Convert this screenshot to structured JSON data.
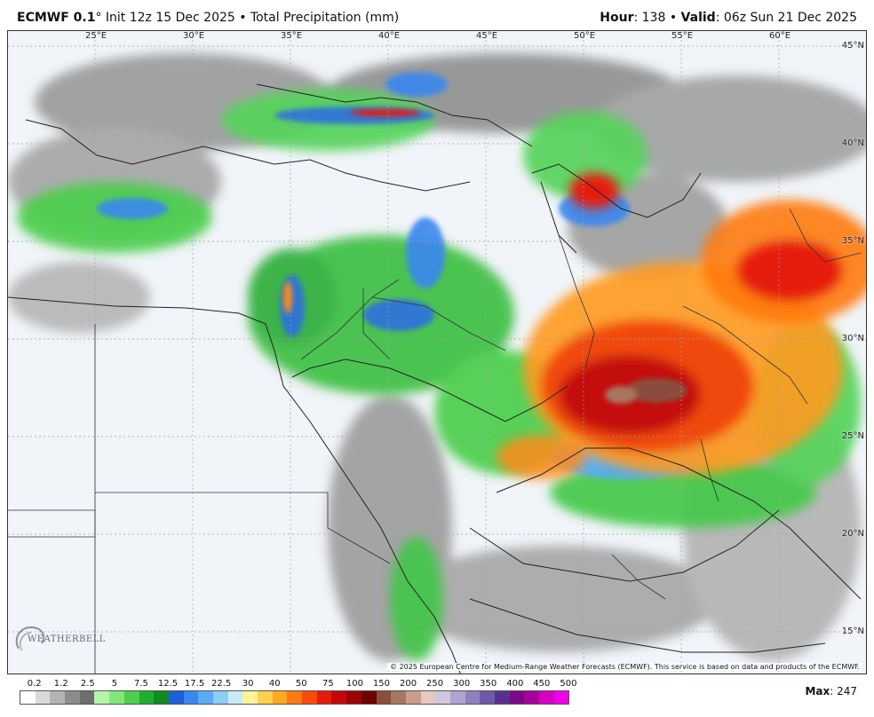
{
  "header": {
    "model": "ECMWF 0.1",
    "degree": "°",
    "init_text": "Init 12z 15 Dec 2025 • Total Precipitation (mm)",
    "hour_label": "Hour",
    "hour_value": ": 138 •",
    "valid_label": "Valid",
    "valid_value": ": 06z Sun 21 Dec 2025"
  },
  "map": {
    "longitudes": [
      "25°E",
      "30°E",
      "35°E",
      "40°E",
      "45°E",
      "50°E",
      "55°E",
      "60°E"
    ],
    "latitudes": [
      "45°N",
      "40°N",
      "35°N",
      "30°N",
      "25°N",
      "20°N",
      "15°N"
    ],
    "credits": "© 2025 European Centre for Medium-Range Weather Forecasts (ECMWF). This service is based on data and products of the ECMWF.",
    "logo_text": "WEATHERBELL"
  },
  "legend": {
    "ticks": [
      "0.2",
      "1.2",
      "2.5",
      "5",
      "7.5",
      "12.5",
      "17.5",
      "22.5",
      "30",
      "40",
      "50",
      "75",
      "100",
      "150",
      "200",
      "250",
      "300",
      "350",
      "400",
      "450",
      "500"
    ],
    "colors": [
      "#ffffff",
      "#d9d9d9",
      "#b3b3b3",
      "#8c8c8c",
      "#6e6e6e",
      "#b3f5a8",
      "#82e67a",
      "#4ccf4c",
      "#1fae2e",
      "#118a22",
      "#1c5fd6",
      "#3b87f0",
      "#5aaaf5",
      "#8ecdf5",
      "#c7ecf7",
      "#fff39a",
      "#ffd24a",
      "#ffa81f",
      "#ff7a10",
      "#ff4a0a",
      "#e61b0a",
      "#c40808",
      "#9c0303",
      "#6e0101",
      "#8a4e3c",
      "#a8765e",
      "#c99d8a",
      "#e6c9be",
      "#cfc7e0",
      "#b0a3d1",
      "#8f7fbf",
      "#6f58a8",
      "#5a2f94",
      "#7a0a87",
      "#a8009a",
      "#d400c4",
      "#f000e6"
    ],
    "max_label": "Max",
    "max_value": ": 247"
  }
}
